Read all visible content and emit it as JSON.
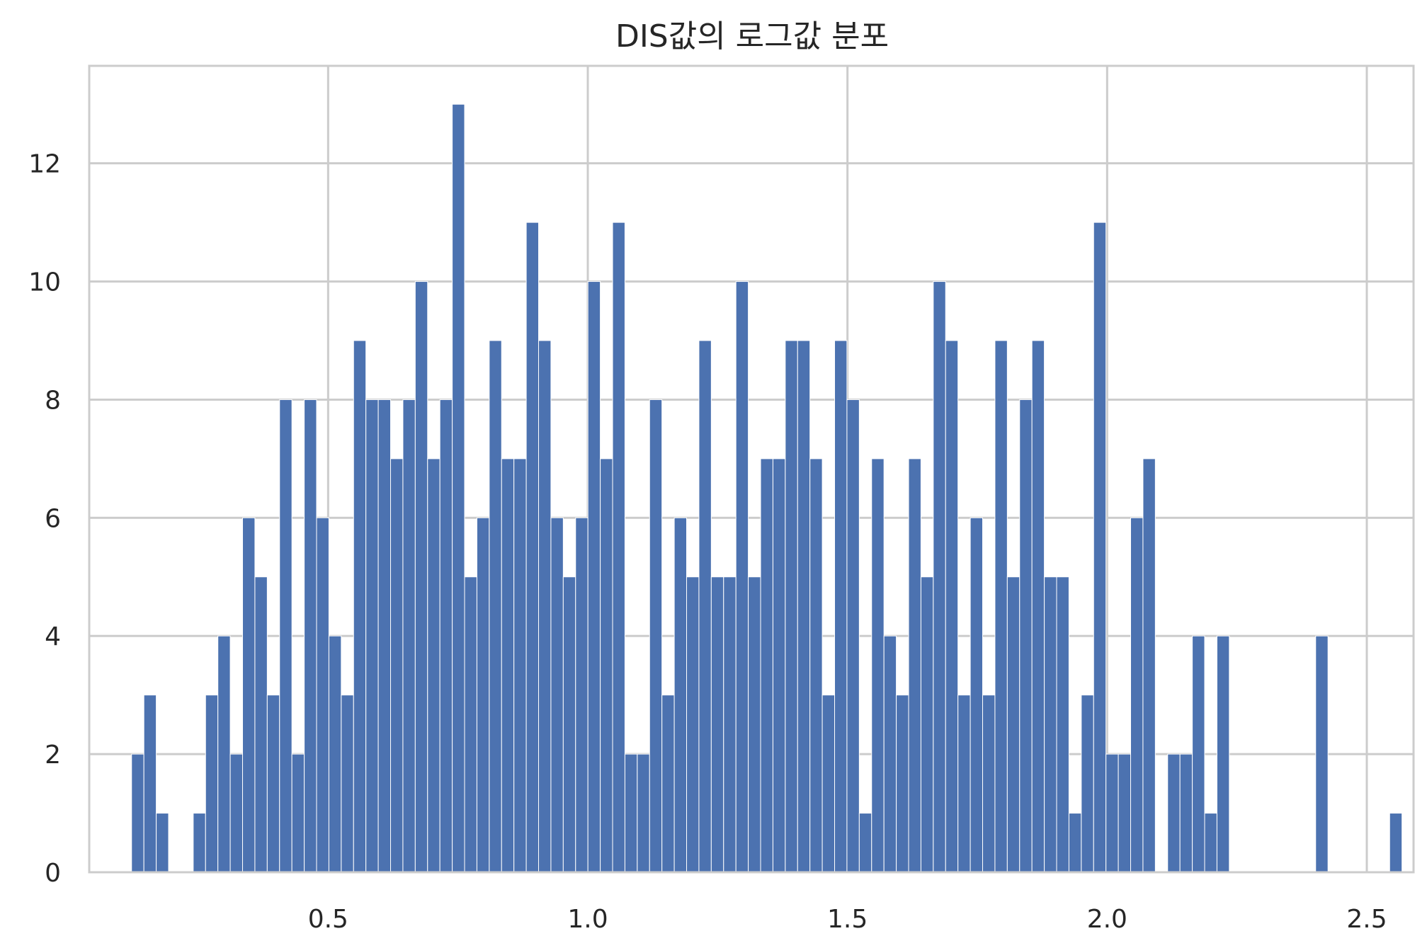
{
  "chart_data": {
    "type": "bar",
    "title": "DIS값의 로그값 분포",
    "xlabel": "",
    "ylabel": "",
    "xlim": [
      0.04,
      2.59
    ],
    "ylim": [
      0,
      13.65
    ],
    "grid": true,
    "x_ticks": [
      "0.5",
      "1.0",
      "1.5",
      "2.0",
      "2.5"
    ],
    "x_tick_values": [
      0.5,
      1.0,
      1.5,
      2.0,
      2.5
    ],
    "y_ticks": [
      "0",
      "2",
      "4",
      "6",
      "8",
      "10",
      "12"
    ],
    "y_tick_values": [
      0,
      2,
      4,
      6,
      8,
      10,
      12
    ],
    "color": "#4c72b0",
    "bin_start": 0.1215,
    "bin_width": 0.02375,
    "values": [
      2,
      3,
      1,
      0,
      0,
      1,
      3,
      4,
      2,
      6,
      5,
      3,
      8,
      2,
      8,
      6,
      4,
      3,
      9,
      8,
      8,
      7,
      8,
      10,
      7,
      8,
      13,
      5,
      6,
      9,
      7,
      7,
      11,
      9,
      6,
      5,
      6,
      10,
      7,
      11,
      2,
      2,
      8,
      3,
      6,
      5,
      9,
      5,
      5,
      10,
      5,
      7,
      7,
      9,
      9,
      7,
      3,
      9,
      8,
      1,
      7,
      4,
      3,
      7,
      5,
      10,
      9,
      3,
      6,
      3,
      9,
      5,
      8,
      9,
      5,
      5,
      1,
      3,
      11,
      2,
      2,
      6,
      7,
      0,
      2,
      2,
      4,
      1,
      4,
      0,
      0,
      0,
      0,
      0,
      0,
      0,
      4,
      0,
      0,
      0,
      0,
      0,
      1
    ]
  }
}
